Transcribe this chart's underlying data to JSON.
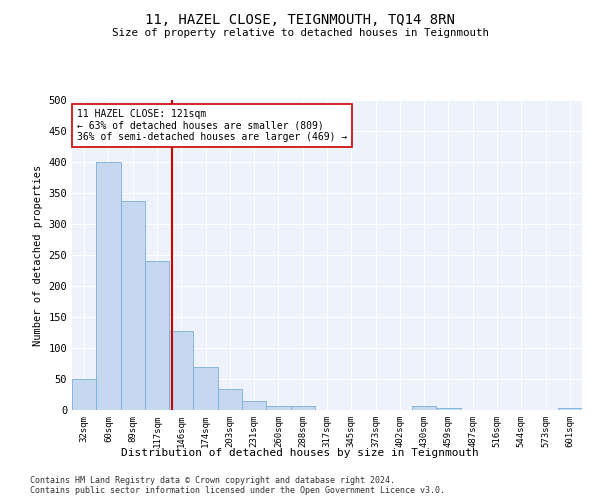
{
  "title1": "11, HAZEL CLOSE, TEIGNMOUTH, TQ14 8RN",
  "title2": "Size of property relative to detached houses in Teignmouth",
  "xlabel": "Distribution of detached houses by size in Teignmouth",
  "ylabel": "Number of detached properties",
  "bar_labels": [
    "32sqm",
    "60sqm",
    "89sqm",
    "117sqm",
    "146sqm",
    "174sqm",
    "203sqm",
    "231sqm",
    "260sqm",
    "288sqm",
    "317sqm",
    "345sqm",
    "373sqm",
    "402sqm",
    "430sqm",
    "459sqm",
    "487sqm",
    "516sqm",
    "544sqm",
    "573sqm",
    "601sqm"
  ],
  "bar_values": [
    50,
    400,
    337,
    240,
    128,
    70,
    34,
    15,
    7,
    7,
    0,
    0,
    0,
    0,
    6,
    3,
    0,
    0,
    0,
    0,
    4
  ],
  "bar_color": "#c5d8f0",
  "bar_edge_color": "#7ab0d8",
  "vline_color": "#cc0000",
  "annotation_box_color": "#ffffff",
  "annotation_box_edge": "#cc0000",
  "ylim": [
    0,
    500
  ],
  "yticks": [
    0,
    50,
    100,
    150,
    200,
    250,
    300,
    350,
    400,
    450,
    500
  ],
  "footnote1": "Contains HM Land Registry data © Crown copyright and database right 2024.",
  "footnote2": "Contains public sector information licensed under the Open Government Licence v3.0.",
  "bg_color": "#eef2fa"
}
